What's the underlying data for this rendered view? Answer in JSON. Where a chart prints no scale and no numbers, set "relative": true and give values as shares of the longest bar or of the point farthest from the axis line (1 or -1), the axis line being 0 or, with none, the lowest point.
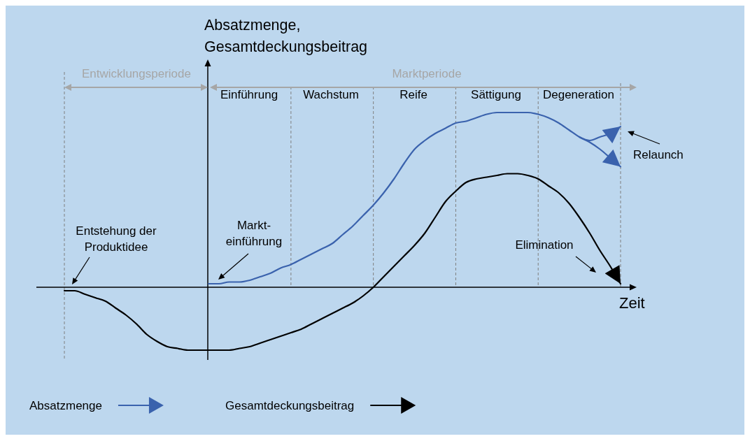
{
  "chart_data": {
    "type": "line",
    "relative": true,
    "ylabel": "Absatzmenge,\nGesamtdeckungsbeitrag",
    "xlabel": "Zeit",
    "categories": [
      null,
      null,
      null,
      null,
      null,
      null,
      null,
      null,
      null,
      null,
      null,
      null,
      null,
      null,
      null,
      null,
      null,
      null,
      null,
      null,
      null,
      null,
      null,
      null,
      null,
      null,
      null,
      null,
      null,
      null,
      null,
      null,
      null,
      null,
      null,
      null,
      null,
      null,
      null,
      null,
      null,
      null,
      null,
      null,
      null,
      null,
      null,
      null,
      null,
      null,
      null,
      null,
      null,
      null,
      null
    ],
    "series": [
      {
        "name": "Absatzmenge",
        "color": "#3a62ad",
        "values": [
          null,
          null,
          null,
          null,
          null,
          null,
          null,
          null,
          null,
          null,
          null,
          null,
          null,
          null,
          0.02,
          0.02,
          0.03,
          0.03,
          0.04,
          0.06,
          0.08,
          0.11,
          0.13,
          0.16,
          0.19,
          0.22,
          0.25,
          0.3,
          0.35,
          0.41,
          0.47,
          0.54,
          0.62,
          0.71,
          0.79,
          0.84,
          0.88,
          0.91,
          0.94,
          0.95,
          0.97,
          0.99,
          1,
          1,
          1,
          1,
          0.99,
          0.97,
          0.94,
          0.9,
          0.86,
          0.83,
          0.79,
          0.74,
          0.69
        ]
      },
      {
        "color": "#3a62ad",
        "values": [
          null,
          null,
          null,
          null,
          null,
          null,
          null,
          null,
          null,
          null,
          null,
          null,
          null,
          null,
          null,
          null,
          null,
          null,
          null,
          null,
          null,
          null,
          null,
          null,
          null,
          null,
          null,
          null,
          null,
          null,
          null,
          null,
          null,
          null,
          null,
          null,
          null,
          null,
          null,
          null,
          null,
          null,
          null,
          null,
          null,
          null,
          null,
          null,
          null,
          null,
          0.86,
          0.84,
          0.86,
          0.88,
          0.92
        ]
      },
      {
        "name": "Gesamtdeckungsbeitrag",
        "color": "#000000",
        "values": [
          -0.02,
          -0.02,
          -0.04,
          -0.06,
          -0.08,
          -0.12,
          -0.16,
          -0.21,
          -0.27,
          -0.31,
          -0.34,
          -0.35,
          -0.36,
          -0.36,
          -0.36,
          -0.36,
          -0.36,
          -0.35,
          -0.34,
          -0.32,
          -0.3,
          -0.28,
          -0.26,
          -0.24,
          -0.21,
          -0.18,
          -0.15,
          -0.12,
          -0.09,
          -0.05,
          0,
          0.06,
          0.12,
          0.18,
          0.24,
          0.31,
          0.4,
          0.49,
          0.55,
          0.6,
          0.62,
          0.63,
          0.64,
          0.65,
          0.65,
          0.64,
          0.62,
          0.58,
          0.54,
          0.48,
          0.4,
          0.31,
          0.21,
          0.12,
          0.02
        ]
      }
    ],
    "annotations": [
      "Entwicklungsperiode",
      "Marktperiode",
      "Einführung",
      "Wachstum",
      "Reife",
      "Sättigung",
      "Degeneration",
      "Entstehung der\nProduktidee",
      "Markt-\neinführung",
      "Relaunch",
      "Elimination"
    ],
    "grid": "x",
    "legend": "bottom"
  }
}
